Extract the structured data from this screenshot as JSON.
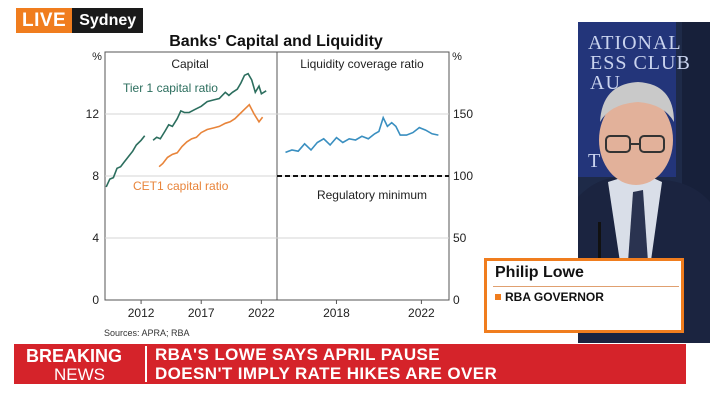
{
  "live_bug": {
    "live_label": "LIVE",
    "city": "Sydney"
  },
  "chart_title": "Banks' Capital and Liquidity",
  "source": "Sources: APRA; RBA",
  "chart_data": [
    {
      "type": "line",
      "panel_title": "Capital",
      "yunit": "%",
      "ylim": [
        0,
        16
      ],
      "yticks": [
        0,
        4,
        8,
        12
      ],
      "xlim": [
        2009,
        2023.3
      ],
      "xticks": [
        2012,
        2017,
        2022
      ],
      "grid": true,
      "series": [
        {
          "name": "Tier 1 capital ratio",
          "color": "#2c6e5e",
          "segments": [
            [
              [
                2009.1,
                7.3
              ],
              [
                2009.4,
                7.8
              ],
              [
                2009.7,
                7.9
              ],
              [
                2010.0,
                8.5
              ],
              [
                2010.3,
                8.6
              ],
              [
                2010.6,
                8.9
              ],
              [
                2011.0,
                9.3
              ],
              [
                2011.3,
                9.6
              ],
              [
                2011.6,
                10.0
              ],
              [
                2012.0,
                10.3
              ],
              [
                2012.3,
                10.6
              ]
            ],
            [
              [
                2013.0,
                10.3
              ],
              [
                2013.3,
                10.5
              ],
              [
                2013.6,
                10.4
              ],
              [
                2014.0,
                10.9
              ],
              [
                2014.3,
                11.3
              ],
              [
                2014.6,
                11.2
              ],
              [
                2015.0,
                11.7
              ],
              [
                2015.3,
                12.2
              ],
              [
                2015.6,
                12.1
              ],
              [
                2016.0,
                12.1
              ],
              [
                2016.5,
                12.3
              ],
              [
                2017.0,
                12.5
              ],
              [
                2017.5,
                12.8
              ],
              [
                2018.0,
                12.9
              ],
              [
                2018.5,
                13.0
              ],
              [
                2019.0,
                13.4
              ],
              [
                2019.3,
                13.2
              ],
              [
                2019.6,
                13.4
              ],
              [
                2020.0,
                13.6
              ],
              [
                2020.3,
                14.0
              ],
              [
                2020.6,
                14.5
              ],
              [
                2020.9,
                14.6
              ],
              [
                2021.2,
                14.2
              ],
              [
                2021.5,
                13.4
              ],
              [
                2021.8,
                13.8
              ],
              [
                2022.0,
                13.3
              ],
              [
                2022.4,
                13.5
              ]
            ]
          ]
        },
        {
          "name": "CET1 capital ratio",
          "color": "#e8843a",
          "segments": [
            [
              [
                2013.5,
                8.6
              ],
              [
                2013.8,
                8.8
              ],
              [
                2014.2,
                9.2
              ],
              [
                2014.6,
                9.4
              ],
              [
                2015.0,
                9.5
              ],
              [
                2015.4,
                9.9
              ],
              [
                2015.8,
                10.2
              ],
              [
                2016.2,
                10.4
              ],
              [
                2016.6,
                10.5
              ],
              [
                2017.0,
                10.8
              ],
              [
                2017.5,
                11.0
              ],
              [
                2018.0,
                11.1
              ],
              [
                2018.5,
                11.2
              ],
              [
                2019.0,
                11.4
              ],
              [
                2019.4,
                11.5
              ],
              [
                2019.8,
                11.7
              ],
              [
                2020.2,
                12.0
              ],
              [
                2020.6,
                12.3
              ],
              [
                2021.0,
                12.6
              ],
              [
                2021.4,
                12.0
              ],
              [
                2021.8,
                11.5
              ],
              [
                2022.1,
                11.8
              ]
            ]
          ]
        }
      ]
    },
    {
      "type": "line",
      "panel_title": "Liquidity coverage ratio",
      "yunit": "%",
      "ylim": [
        0,
        200
      ],
      "yticks": [
        0,
        50,
        100,
        150
      ],
      "xlim": [
        2015.2,
        2023.3
      ],
      "xticks": [
        2018,
        2022
      ],
      "grid": true,
      "series": [
        {
          "name": "",
          "color": "#3a8fc0",
          "points": [
            [
              2015.6,
              119
            ],
            [
              2015.9,
              121
            ],
            [
              2016.2,
              120
            ],
            [
              2016.5,
              126
            ],
            [
              2016.8,
              121
            ],
            [
              2017.1,
              127
            ],
            [
              2017.4,
              130
            ],
            [
              2017.7,
              125
            ],
            [
              2018.0,
              131
            ],
            [
              2018.3,
              127
            ],
            [
              2018.6,
              130
            ],
            [
              2018.9,
              129
            ],
            [
              2019.2,
              132
            ],
            [
              2019.5,
              130
            ],
            [
              2019.8,
              134
            ],
            [
              2020.0,
              136
            ],
            [
              2020.2,
              147
            ],
            [
              2020.4,
              140
            ],
            [
              2020.6,
              143
            ],
            [
              2020.8,
              140
            ],
            [
              2021.0,
              133
            ],
            [
              2021.3,
              133
            ],
            [
              2021.6,
              135
            ],
            [
              2021.9,
              139
            ],
            [
              2022.2,
              137
            ],
            [
              2022.5,
              134
            ],
            [
              2022.8,
              133
            ]
          ]
        }
      ],
      "reference_line": {
        "value": 100,
        "label": "Regulatory minimum",
        "style": "dashed"
      }
    }
  ],
  "video_backdrop": {
    "text_lines": [
      "ATIONAL",
      "ESS CLUB",
      "AU",
      "T"
    ]
  },
  "nameplate": {
    "name": "Philip Lowe",
    "title": "RBA GOVERNOR"
  },
  "breaking_news": {
    "line1": "BREAKING",
    "line2": "NEWS",
    "headline1": "RBA'S LOWE SAYS APRIL PAUSE",
    "headline2": "DOESN'T IMPLY RATE HIKES ARE OVER"
  },
  "colors": {
    "accent": "#f07d1e",
    "breaking_red": "#d5232a"
  }
}
